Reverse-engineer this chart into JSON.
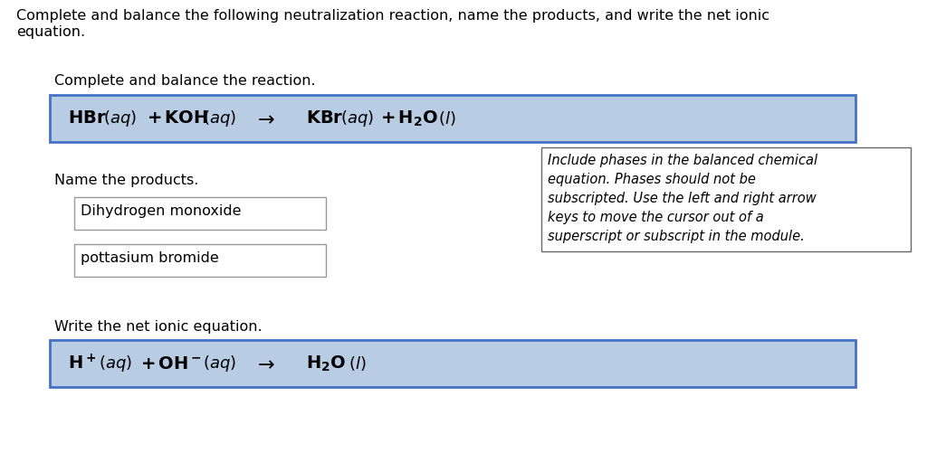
{
  "background_color": "#ffffff",
  "title_line1": "Complete and balance the following neutralization reaction, name the products, and write the net ionic",
  "title_line2": "equation.",
  "section1_label": "Complete and balance the reaction.",
  "reaction_box_color": "#b8cce4",
  "reaction_box_border": "#4472c4",
  "name_label": "Name the products.",
  "product1": "Dihydrogen monoxide",
  "product2": "pottasium bromide",
  "hint_line1": "Include phases in the balanced chemical",
  "hint_line2": "equation. Phases should not be",
  "hint_line3": "subscripted. Use the left and right arrow",
  "hint_line4": "keys to move the cursor out of a",
  "hint_line5": "superscript or subscript in the module.",
  "section2_label": "Write the net ionic equation.",
  "font_size_title": 11.5,
  "font_size_label": 11.5,
  "font_size_reaction": 14,
  "font_size_hint": 10.5,
  "font_size_product": 11.5
}
